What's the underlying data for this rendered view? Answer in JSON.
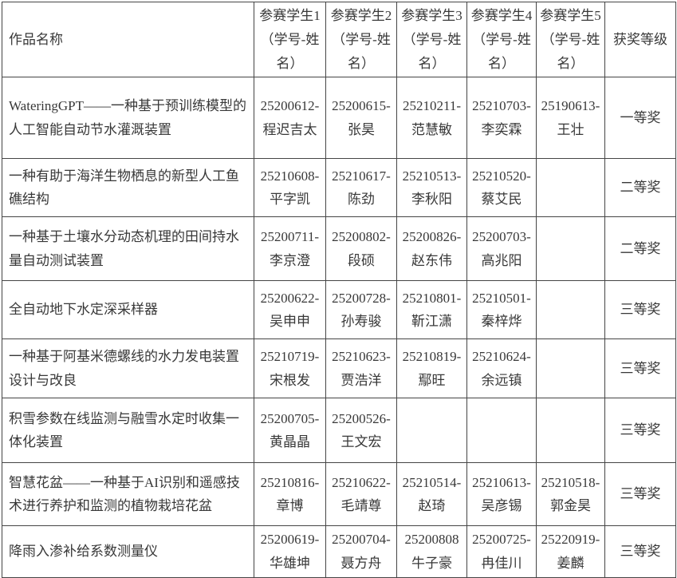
{
  "table": {
    "headers": [
      "作品名称",
      "参赛学生1（学号-姓名）",
      "参赛学生2（学号-姓名）",
      "参赛学生3（学号-姓名）",
      "参赛学生4（学号-姓名）",
      "参赛学生5（学号-姓名）",
      "获奖等级"
    ],
    "rows": [
      {
        "cells": [
          "WateringGPT——一种基于预训练模型的人工智能自动节水灌溉装置",
          "25200612-\n程迟吉太",
          "25200615-\n张昊",
          "25210211-\n范慧敏",
          "25210703-\n李奕霖",
          "25190613-\n王壮",
          "一等奖"
        ]
      },
      {
        "cells": [
          "一种有助于海洋生物栖息的新型人工鱼礁结构",
          "25210608-\n平字凯",
          "25210617-\n陈劲",
          "25210513-\n李秋阳",
          "25210520-\n蔡艾民",
          "",
          "二等奖"
        ]
      },
      {
        "cells": [
          "一种基于土壤水分动态机理的田间持水量自动测试装置",
          "25200711-\n李京澄",
          "25200802-\n段硕",
          "25200826-\n赵东伟",
          "25200703-\n高兆阳",
          "",
          "二等奖"
        ]
      },
      {
        "cells": [
          "全自动地下水定深采样器",
          "25200622-\n吴申申",
          "25200728-\n孙寿骏",
          "25210801-\n靳江潇",
          "25210501-\n秦梓烨",
          "",
          "三等奖"
        ]
      },
      {
        "cells": [
          "一种基于阿基米德螺线的水力发电装置设计与改良",
          "25210719-\n宋根发",
          "25210623-\n贾浩洋",
          "25210819-\n鄢旺",
          "25210624-\n余远镇",
          "",
          "三等奖"
        ]
      },
      {
        "cells": [
          "积雪参数在线监测与融雪水定时收集一体化装置",
          "25200705-\n黄晶晶",
          "25200526-\n王文宏",
          "",
          "",
          "",
          "三等奖"
        ]
      },
      {
        "cells": [
          "智慧花盆——一种基于AI识别和遥感技术进行养护和监测的植物栽培花盆",
          "25210816-\n章博",
          "25210622-\n毛靖尊",
          "25210514-\n赵琦",
          "25210613-\n吴彦锡",
          "25210518-\n郭金昊",
          "三等奖"
        ]
      },
      {
        "cells": [
          "降雨入渗补给系数测量仪",
          "25200619-\n华雄坤",
          "25200704-\n聂方舟",
          "25200808\n牛子豪",
          "25200725-\n冉佳川",
          "25220919-\n姜麟",
          "三等奖"
        ]
      }
    ]
  },
  "colors": {
    "border": "#454545",
    "text": "#383838",
    "background": "#ffffff"
  }
}
